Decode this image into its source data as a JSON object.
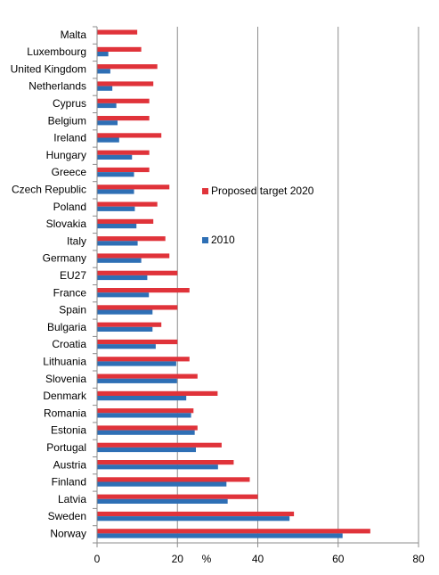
{
  "chart_data": {
    "type": "bar",
    "orientation": "horizontal",
    "categories": [
      "Malta",
      "Luxembourg",
      "United Kingdom",
      "Netherlands",
      "Cyprus",
      "Belgium",
      "Ireland",
      "Hungary",
      "Greece",
      "Czech Republic",
      "Poland",
      "Slovakia",
      "Italy",
      "Germany",
      "EU27",
      "France",
      "Spain",
      "Bulgaria",
      "Croatia",
      "Lithuania",
      "Slovenia",
      "Denmark",
      "Romania",
      "Estonia",
      "Portugal",
      "Austria",
      "Finland",
      "Latvia",
      "Sweden",
      "Norway"
    ],
    "series": [
      {
        "name": "Proposed target 2020",
        "color": "#e0333a",
        "values": [
          10,
          11,
          15,
          14,
          13,
          13,
          16,
          13,
          13,
          18,
          15,
          14,
          17,
          18,
          20,
          23,
          20,
          16,
          20,
          23,
          25,
          30,
          24,
          25,
          31,
          34,
          38,
          40,
          49,
          68
        ]
      },
      {
        "name": "2010",
        "color": "#2e6fb5",
        "values": [
          null,
          2.8,
          3.3,
          3.8,
          4.8,
          5.1,
          5.5,
          8.7,
          9.2,
          9.2,
          9.4,
          9.8,
          10.1,
          11,
          12.5,
          12.9,
          13.8,
          13.8,
          14.6,
          19.7,
          19.9,
          22.2,
          23.4,
          24.3,
          24.6,
          30.1,
          32.2,
          32.5,
          47.9,
          61.1
        ]
      }
    ],
    "xlabel": "%",
    "xlim": [
      0,
      80
    ],
    "xticks": [
      "0",
      "20",
      "40",
      "60",
      "80"
    ],
    "grid": true,
    "legend_position": "inside-right"
  }
}
